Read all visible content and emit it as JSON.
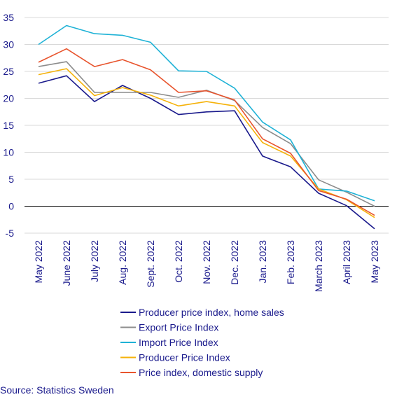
{
  "chart_data": {
    "type": "line",
    "title": "",
    "xlabel": "",
    "ylabel": "",
    "ylim": [
      -5,
      35
    ],
    "yticks": [
      -5,
      0,
      5,
      10,
      15,
      20,
      25,
      30,
      35
    ],
    "grid": true,
    "legend_position": "bottom",
    "categories": [
      "May 2022",
      "June 2022",
      "July 2022",
      "Aug. 2022",
      "Sept. 2022",
      "Oct. 2022",
      "Nov. 2022",
      "Dec. 2022",
      "Jan. 2023",
      "Feb. 2023",
      "March 2023",
      "April 2023",
      "May 2023"
    ],
    "series": [
      {
        "name": "Producer price index, home sales",
        "color": "#1a1a8c",
        "values": [
          22.8,
          24.2,
          19.4,
          22.4,
          20.0,
          17.0,
          17.5,
          17.7,
          9.3,
          7.3,
          2.4,
          0.1,
          -4.2
        ]
      },
      {
        "name": "Export Price Index",
        "color": "#8c8c8c",
        "values": [
          25.9,
          26.8,
          21.1,
          21.1,
          21.1,
          20.2,
          21.5,
          19.6,
          14.6,
          11.6,
          4.9,
          2.6,
          0.0
        ]
      },
      {
        "name": "Import Price Index",
        "color": "#1fb2d6",
        "values": [
          30.0,
          33.5,
          32.0,
          31.7,
          30.4,
          25.1,
          25.0,
          21.9,
          15.6,
          12.3,
          3.2,
          2.8,
          1.0
        ]
      },
      {
        "name": "Producer Price Index",
        "color": "#f5b20a",
        "values": [
          24.4,
          25.5,
          20.5,
          22.0,
          20.6,
          18.6,
          19.4,
          18.6,
          11.8,
          9.3,
          3.2,
          1.2,
          -2.1
        ]
      },
      {
        "name": "Price index, domestic supply",
        "color": "#e8542d",
        "values": [
          26.7,
          29.2,
          25.9,
          27.2,
          25.3,
          21.1,
          21.4,
          19.7,
          12.5,
          9.8,
          2.9,
          1.3,
          -1.7
        ]
      }
    ]
  },
  "source": "Source: Statistics Sweden"
}
